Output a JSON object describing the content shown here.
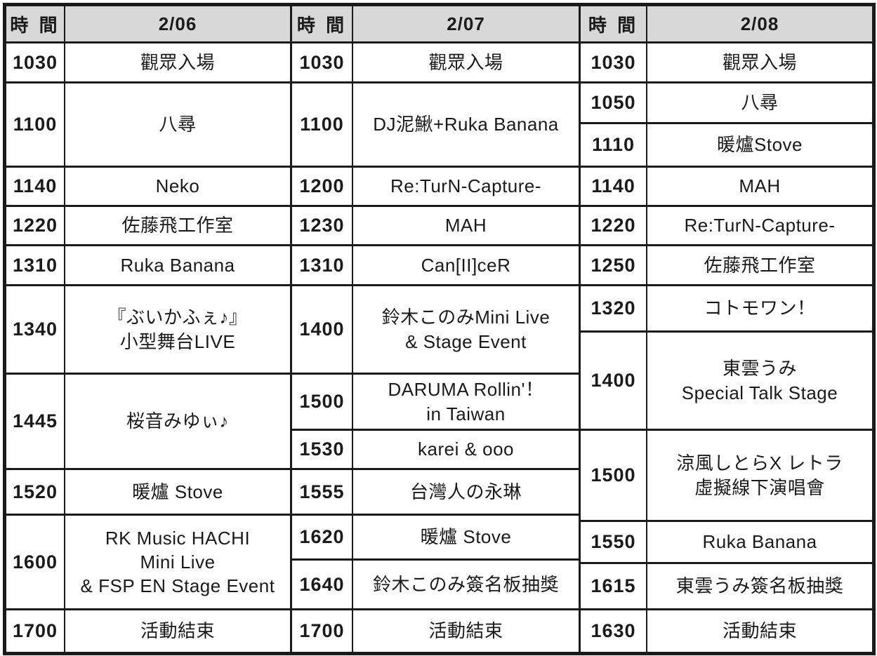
{
  "schedule": {
    "time_header": "時 間",
    "colors": {
      "header_bg": "#d8d8d8",
      "line": "#1a1a1a",
      "text": "#1a1a1a",
      "background": "#ffffff"
    },
    "days": [
      {
        "date": "2/06",
        "rows": [
          {
            "time": "1030",
            "event": "觀眾入場"
          },
          {
            "time": "1100",
            "event": "八尋"
          },
          {
            "time": "1140",
            "event": "Neko"
          },
          {
            "time": "1220",
            "event": "佐藤飛工作室"
          },
          {
            "time": "1310",
            "event": "Ruka Banana"
          },
          {
            "time": "1340",
            "event": "『ぶいかふぇ♪』\n小型舞台LIVE"
          },
          {
            "time": "1445",
            "event": "桜音みゆぃ♪"
          },
          {
            "time": "1520",
            "event": "暖爐 Stove"
          },
          {
            "time": "1600",
            "event": "RK Music HACHI\nMini Live\n& FSP EN Stage Event"
          },
          {
            "time": "1700",
            "event": "活動結束"
          }
        ]
      },
      {
        "date": "2/07",
        "rows": [
          {
            "time": "1030",
            "event": "觀眾入場"
          },
          {
            "time": "1100",
            "event": "DJ泥鰍+Ruka Banana"
          },
          {
            "time": "1200",
            "event": "Re:TurN-Capture-"
          },
          {
            "time": "1230",
            "event": "MAH"
          },
          {
            "time": "1310",
            "event": "Can[II]ceR"
          },
          {
            "time": "1400",
            "event": "鈴木このみMini Live\n& Stage Event"
          },
          {
            "time": "1500",
            "event": "DARUMA Rollin'！\nin Taiwan"
          },
          {
            "time": "1530",
            "event": "karei & ooo"
          },
          {
            "time": "1555",
            "event": "台灣人の永琳"
          },
          {
            "time": "1620",
            "event": "暖爐 Stove"
          },
          {
            "time": "1640",
            "event": "鈴木このみ簽名板抽獎"
          },
          {
            "time": "1700",
            "event": "活動結束"
          }
        ]
      },
      {
        "date": "2/08",
        "rows": [
          {
            "time": "1030",
            "event": "觀眾入場"
          },
          {
            "time": "1050",
            "event": "八尋"
          },
          {
            "time": "1110",
            "event": "暖爐Stove"
          },
          {
            "time": "1140",
            "event": "MAH"
          },
          {
            "time": "1220",
            "event": "Re:TurN-Capture-"
          },
          {
            "time": "1250",
            "event": "佐藤飛工作室"
          },
          {
            "time": "1320",
            "event": "コトモワン！"
          },
          {
            "time": "1400",
            "event": "東雲うみ\nSpecial Talk Stage"
          },
          {
            "time": "1500",
            "event": "涼風しとらX レトラ\n虛擬線下演唱會"
          },
          {
            "time": "1550",
            "event": "Ruka Banana"
          },
          {
            "time": "1615",
            "event": "東雲うみ簽名板抽獎"
          },
          {
            "time": "1630",
            "event": "活動結束"
          }
        ]
      }
    ]
  }
}
